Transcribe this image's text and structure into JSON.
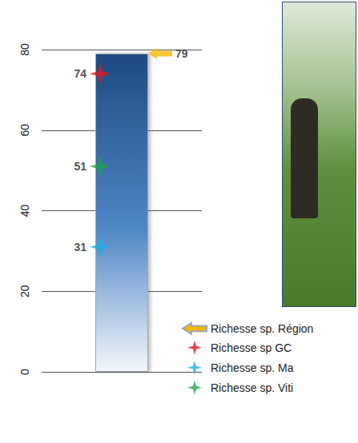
{
  "chart_data": {
    "type": "bar",
    "categories": [
      null
    ],
    "color": "#1f4a80",
    "series": [
      {
        "name": "Richesse sp. Région",
        "type": "bar",
        "color": "#f5b800",
        "marker": "arrow",
        "values": [
          79
        ]
      },
      {
        "name": "Richesse sp GC",
        "type": "scatter",
        "color": "#e8141b",
        "marker": "star",
        "values": [
          74
        ]
      },
      {
        "name": "Richesse sp. Ma",
        "type": "scatter",
        "color": "#1aaee5",
        "marker": "star",
        "values": [
          31
        ]
      },
      {
        "name": "Richesse sp. Viti",
        "type": "scatter",
        "color": "#19a84a",
        "marker": "star",
        "values": [
          51
        ]
      }
    ],
    "ylim": [
      0,
      80
    ],
    "yticks": [
      0,
      20,
      40,
      60,
      80
    ],
    "grid": true,
    "legend": "bottom-right",
    "data_labels": true,
    "tick_labels": "y"
  }
}
